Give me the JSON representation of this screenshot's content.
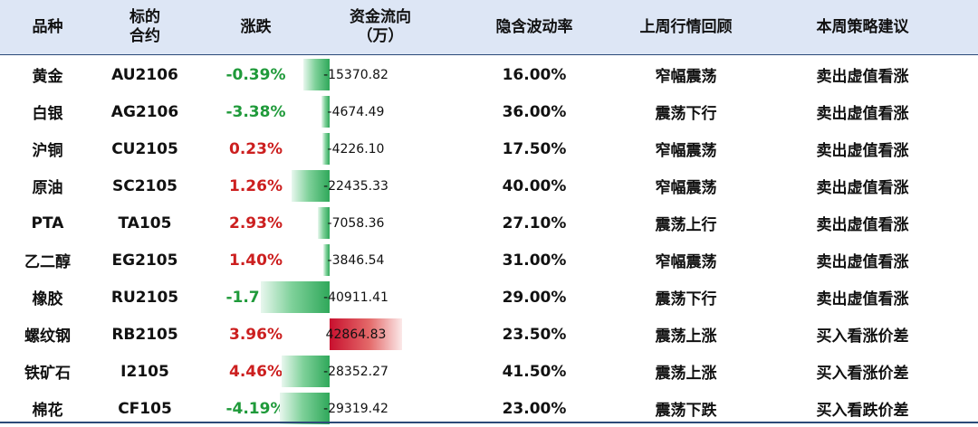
{
  "headers": {
    "variety": "品种",
    "contract": "标的\n合约",
    "change": "涨跌",
    "fund_flow": "资金流向\n（万）",
    "iv": "隐含波动率",
    "review": "上周行情回顾",
    "strategy": "本周策略建议"
  },
  "fund_flow_scale_max_abs": 42864.83,
  "colors": {
    "header_bg": "#dde6f5",
    "up": "#cc1f1f",
    "down": "#1f9a3a",
    "bar_out": "#2fa85a",
    "bar_in": "#c8102e"
  },
  "rows": [
    {
      "variety": "黄金",
      "contract": "AU2106",
      "change": "-0.39%",
      "change_value": -0.39,
      "fund_flow": "-15370.82",
      "fund_flow_value": -15370.82,
      "iv": "16.00%",
      "review": "窄幅震荡",
      "strategy": "卖出虚值看涨"
    },
    {
      "variety": "白银",
      "contract": "AG2106",
      "change": "-3.38%",
      "change_value": -3.38,
      "fund_flow": "-4674.49",
      "fund_flow_value": -4674.49,
      "iv": "36.00%",
      "review": "震荡下行",
      "strategy": "卖出虚值看涨"
    },
    {
      "variety": "沪铜",
      "contract": "CU2105",
      "change": "0.23%",
      "change_value": 0.23,
      "fund_flow": "-4226.10",
      "fund_flow_value": -4226.1,
      "iv": "17.50%",
      "review": "窄幅震荡",
      "strategy": "卖出虚值看涨"
    },
    {
      "variety": "原油",
      "contract": "SC2105",
      "change": "1.26%",
      "change_value": 1.26,
      "fund_flow": "-22435.33",
      "fund_flow_value": -22435.33,
      "iv": "40.00%",
      "review": "窄幅震荡",
      "strategy": "卖出虚值看涨"
    },
    {
      "variety": "PTA",
      "contract": "TA105",
      "change": "2.93%",
      "change_value": 2.93,
      "fund_flow": "-7058.36",
      "fund_flow_value": -7058.36,
      "iv": "27.10%",
      "review": "震荡上行",
      "strategy": "卖出虚值看涨"
    },
    {
      "variety": "乙二醇",
      "contract": "EG2105",
      "change": "1.40%",
      "change_value": 1.4,
      "fund_flow": "-3846.54",
      "fund_flow_value": -3846.54,
      "iv": "31.00%",
      "review": "窄幅震荡",
      "strategy": "卖出虚值看涨"
    },
    {
      "variety": "橡胶",
      "contract": "RU2105",
      "change": "-1.71%",
      "change_value": -1.71,
      "fund_flow": "-40911.41",
      "fund_flow_value": -40911.41,
      "iv": "29.00%",
      "review": "震荡下行",
      "strategy": "卖出虚值看涨"
    },
    {
      "variety": "螺纹钢",
      "contract": "RB2105",
      "change": "3.96%",
      "change_value": 3.96,
      "fund_flow": "42864.83",
      "fund_flow_value": 42864.83,
      "iv": "23.50%",
      "review": "震荡上涨",
      "strategy": "买入看涨价差"
    },
    {
      "variety": "铁矿石",
      "contract": "I2105",
      "change": "4.46%",
      "change_value": 4.46,
      "fund_flow": "-28352.27",
      "fund_flow_value": -28352.27,
      "iv": "41.50%",
      "review": "震荡上涨",
      "strategy": "买入看涨价差"
    },
    {
      "variety": "棉花",
      "contract": "CF105",
      "change": "-4.19%",
      "change_value": -4.19,
      "fund_flow": "-29319.42",
      "fund_flow_value": -29319.42,
      "iv": "23.00%",
      "review": "震荡下跌",
      "strategy": "买入看跌价差"
    }
  ]
}
